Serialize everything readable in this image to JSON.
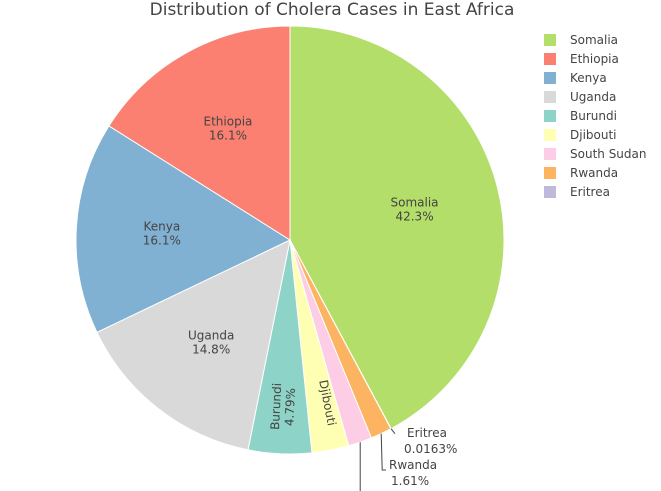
{
  "chart_data": {
    "type": "pie",
    "title": "Distribution of Cholera Cases in East Africa",
    "slices": [
      {
        "label": "Somalia",
        "value": 42.3,
        "text": "42.3%",
        "color": "#b3de69"
      },
      {
        "label": "Eritrea",
        "value": 0.0163,
        "text": "0.0163%",
        "color": "#bebada"
      },
      {
        "label": "Rwanda",
        "value": 1.61,
        "text": "1.61%",
        "color": "#fdb462"
      },
      {
        "label": "South Sudan",
        "value": 1.79,
        "text": "",
        "color": "#fccde5"
      },
      {
        "label": "Djibouti",
        "value": 2.8,
        "text": "",
        "color": "#ffffb3"
      },
      {
        "label": "Burundi",
        "value": 4.79,
        "text": "4.79%",
        "color": "#8dd3c7"
      },
      {
        "label": "Uganda",
        "value": 14.8,
        "text": "14.8%",
        "color": "#d9d9d9"
      },
      {
        "label": "Kenya",
        "value": 16.1,
        "text": "16.1%",
        "color": "#80b1d3"
      },
      {
        "label": "Ethiopia",
        "value": 16.1,
        "text": "16.1%",
        "color": "#fb8072"
      }
    ],
    "legend": {
      "placement": "top-right",
      "items": [
        "Somalia",
        "Ethiopia",
        "Kenya",
        "Uganda",
        "Burundi",
        "Djibouti",
        "South Sudan",
        "Rwanda",
        "Eritrea"
      ]
    }
  }
}
